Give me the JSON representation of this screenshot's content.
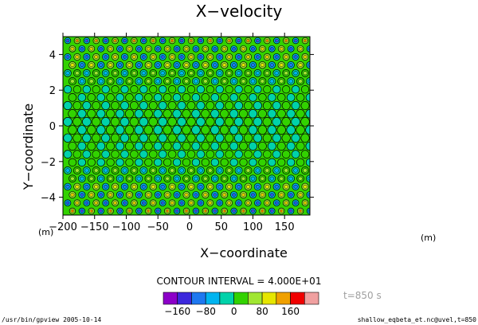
{
  "chart_data": {
    "type": "heatmap",
    "title": "X−velocity",
    "xlabel": "X−coordinate",
    "ylabel": "Y−coordinate",
    "x_unit": "(m)",
    "y_unit": "(m)",
    "xlim": [
      -200,
      190
    ],
    "ylim": [
      -5,
      5
    ],
    "x_ticks": [
      -200,
      -150,
      -100,
      -50,
      0,
      50,
      100,
      150
    ],
    "y_ticks": [
      -4,
      -2,
      0,
      2,
      4
    ],
    "x_tick_labels": [
      "−200",
      "−150",
      "−100",
      "−50",
      "0",
      "50",
      "100",
      "150"
    ],
    "y_tick_labels": [
      "−4",
      "−2",
      "0",
      "2",
      "4"
    ],
    "contour_interval": "CONTOUR INTERVAL = 4.000E+01",
    "colorbar": {
      "levels": [
        -200,
        -160,
        -120,
        -80,
        -40,
        0,
        40,
        80,
        120,
        160,
        200
      ],
      "colors": [
        "#8c00c8",
        "#3c28dc",
        "#1e78f0",
        "#00b4f0",
        "#00d2aa",
        "#32d200",
        "#a0e632",
        "#e6e600",
        "#f0a000",
        "#f00000",
        "#f0a0a0"
      ],
      "labels": [
        {
          "value": -160,
          "text": "−160"
        },
        {
          "value": -80,
          "text": "−80"
        },
        {
          "value": 0,
          "text": "0"
        },
        {
          "value": 80,
          "text": "80"
        },
        {
          "value": 160,
          "text": "160"
        }
      ]
    },
    "background_value": 0,
    "grid": false
  },
  "time_label": "t=850 s",
  "footer_left": "/usr/bin/gpview  2005-10-14",
  "footer_right": "shallow_eqbeta_et.nc@uvel,t=850"
}
